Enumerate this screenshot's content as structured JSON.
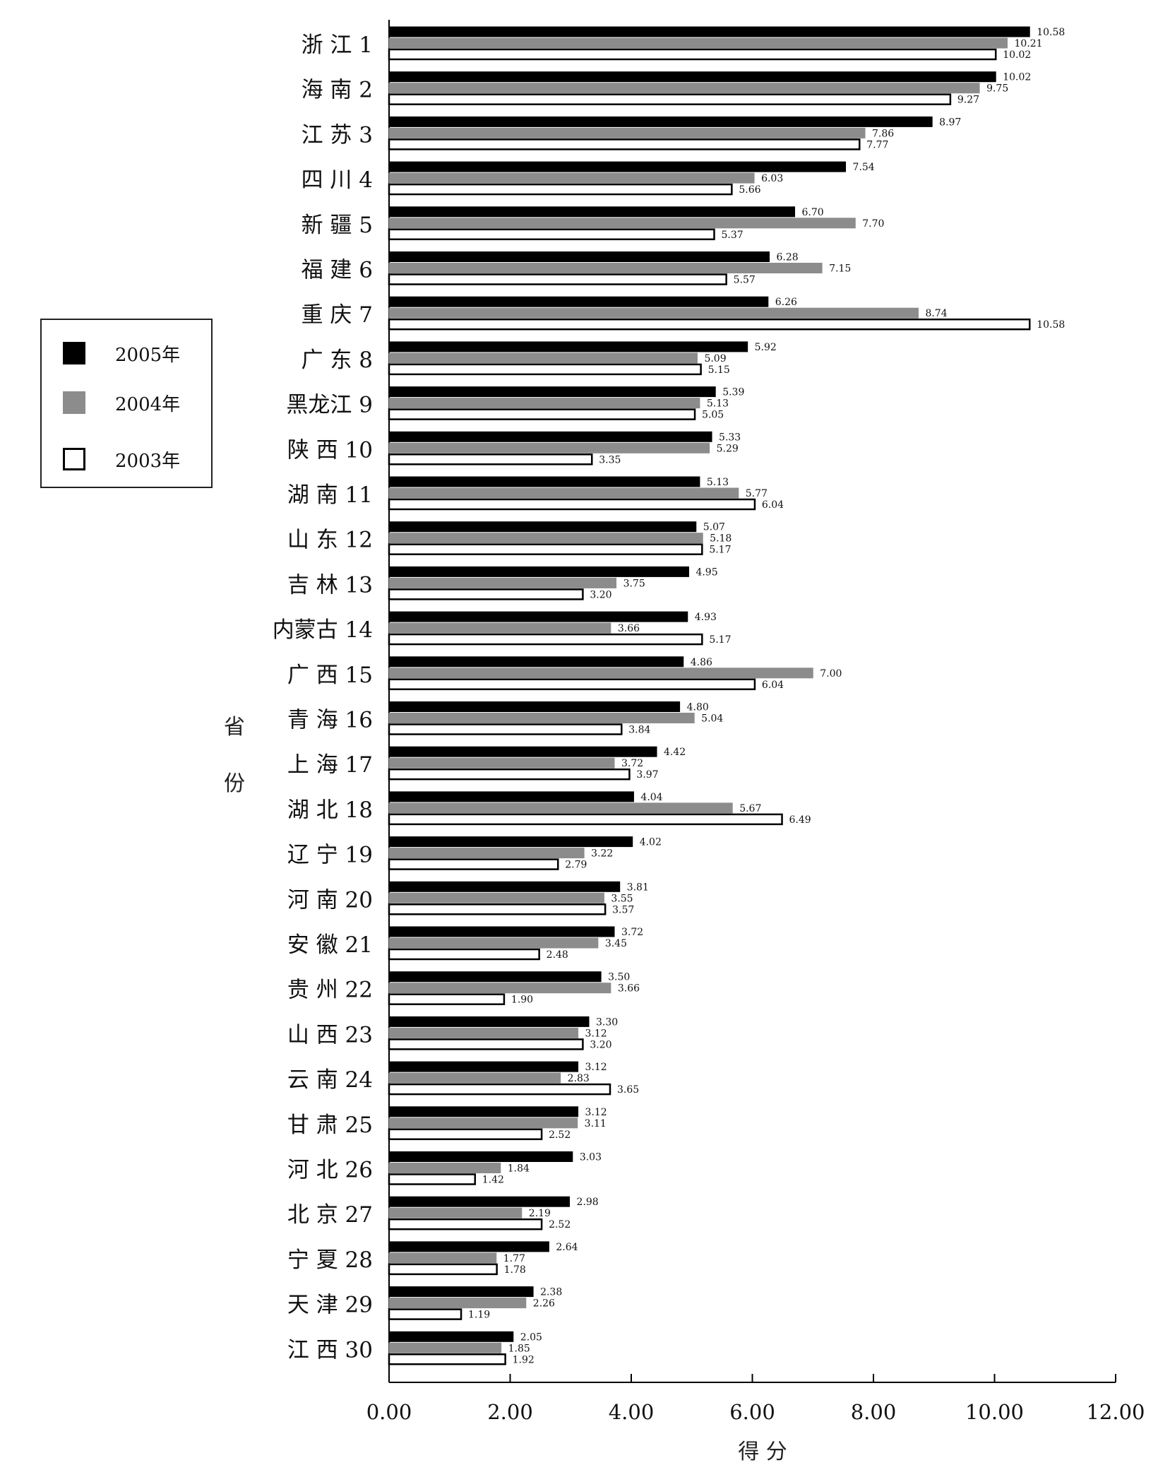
{
  "chart_data": {
    "type": "bar",
    "orientation": "horizontal",
    "categories": [
      "浙 江 1",
      "海 南 2",
      "江 苏 3",
      "四 川 4",
      "新 疆 5",
      "福 建 6",
      "重 庆 7",
      "广 东 8",
      "黑龙江 9",
      "陕 西 10",
      "湖 南 11",
      "山 东 12",
      "吉 林 13",
      "内蒙古 14",
      "广 西 15",
      "青 海 16",
      "上 海 17",
      "湖 北 18",
      "辽 宁 19",
      "河 南 20",
      "安 徽 21",
      "贵 州 22",
      "山 西 23",
      "云 南 24",
      "甘 肃 25",
      "河 北 26",
      "北 京 27",
      "宁 夏 28",
      "天 津 29",
      "江 西 30"
    ],
    "series": [
      {
        "name": "2005年",
        "color": "#000000",
        "values": [
          10.58,
          10.02,
          8.97,
          7.54,
          6.7,
          6.28,
          6.26,
          5.92,
          5.39,
          5.33,
          5.13,
          5.07,
          4.95,
          4.93,
          4.86,
          4.8,
          4.42,
          4.04,
          4.02,
          3.81,
          3.72,
          3.5,
          3.3,
          3.12,
          3.12,
          3.03,
          2.98,
          2.64,
          2.38,
          2.05
        ]
      },
      {
        "name": "2004年",
        "color": "#8c8c8c",
        "values": [
          10.21,
          9.75,
          7.86,
          6.03,
          7.7,
          7.15,
          8.74,
          5.09,
          5.13,
          5.29,
          5.77,
          5.18,
          3.75,
          3.66,
          7.0,
          5.04,
          3.72,
          5.67,
          3.22,
          3.55,
          3.45,
          3.66,
          3.12,
          2.83,
          3.11,
          1.84,
          2.19,
          1.77,
          2.26,
          1.85
        ]
      },
      {
        "name": "2003年",
        "color": "#ffffff",
        "values": [
          10.02,
          9.27,
          7.77,
          5.66,
          5.37,
          5.57,
          10.58,
          5.15,
          5.05,
          3.35,
          6.04,
          5.17,
          3.2,
          5.17,
          6.04,
          3.84,
          3.97,
          6.49,
          2.79,
          3.57,
          2.48,
          1.9,
          3.2,
          3.65,
          2.52,
          1.42,
          2.52,
          1.78,
          1.19,
          1.92
        ]
      }
    ],
    "xlabel": "得 分",
    "ylabel": "省 份",
    "xlim": [
      0,
      12
    ],
    "xticks": [
      "0.00",
      "2.00",
      "4.00",
      "6.00",
      "8.00",
      "10.00",
      "12.00"
    ],
    "grid": false,
    "legend_position": "left"
  }
}
